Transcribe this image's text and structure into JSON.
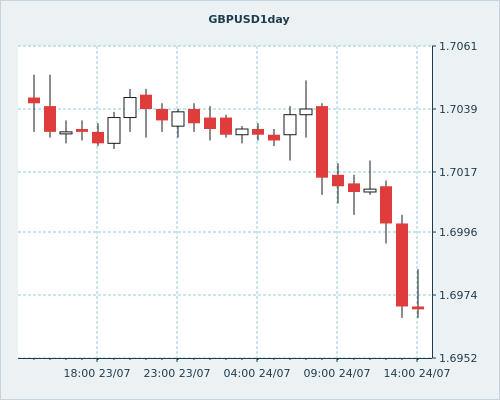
{
  "chart_data": {
    "type": "candlestick",
    "title": "GBPUSD1day",
    "colors": {
      "up_fill": "#ffffff",
      "down_fill": "#e03c3c",
      "outline": "#1a1a1a",
      "grid": "#8fcfd8",
      "plot_background": "#ffffff",
      "frame_background": "#ecf1f4",
      "text": "#1f3c4f"
    },
    "y_axis": {
      "position": "right",
      "range": [
        1.6952,
        1.7061
      ],
      "ticks": [
        "1.7061",
        "1.7039",
        "1.7017",
        "1.6996",
        "1.6974",
        "1.6952"
      ]
    },
    "x_axis": {
      "ticks": [
        "18:00 23/07",
        "23:00 23/07",
        "04:00 24/07",
        "09:00 24/07",
        "14:00 24/07"
      ]
    },
    "grid": true,
    "candles": [
      {
        "open": 1.7043,
        "high": 1.7051,
        "low": 1.7031,
        "close": 1.7041
      },
      {
        "open": 1.704,
        "high": 1.7051,
        "low": 1.7029,
        "close": 1.7031
      },
      {
        "open": 1.7031,
        "high": 1.7035,
        "low": 1.7027,
        "close": 1.7031
      },
      {
        "open": 1.7032,
        "high": 1.7035,
        "low": 1.7028,
        "close": 1.7031
      },
      {
        "open": 1.7031,
        "high": 1.7034,
        "low": 1.7026,
        "close": 1.7027
      },
      {
        "open": 1.7027,
        "high": 1.7038,
        "low": 1.7025,
        "close": 1.7036
      },
      {
        "open": 1.7036,
        "high": 1.7046,
        "low": 1.7031,
        "close": 1.7043
      },
      {
        "open": 1.7044,
        "high": 1.7046,
        "low": 1.7029,
        "close": 1.7039
      },
      {
        "open": 1.7039,
        "high": 1.7041,
        "low": 1.7031,
        "close": 1.7035
      },
      {
        "open": 1.7033,
        "high": 1.7039,
        "low": 1.7029,
        "close": 1.7038
      },
      {
        "open": 1.7039,
        "high": 1.7041,
        "low": 1.7031,
        "close": 1.7034
      },
      {
        "open": 1.7036,
        "high": 1.704,
        "low": 1.7028,
        "close": 1.7032
      },
      {
        "open": 1.7036,
        "high": 1.7037,
        "low": 1.7029,
        "close": 1.703
      },
      {
        "open": 1.703,
        "high": 1.7033,
        "low": 1.7027,
        "close": 1.7032
      },
      {
        "open": 1.7032,
        "high": 1.7034,
        "low": 1.7028,
        "close": 1.703
      },
      {
        "open": 1.703,
        "high": 1.7032,
        "low": 1.7026,
        "close": 1.7028
      },
      {
        "open": 1.703,
        "high": 1.704,
        "low": 1.7021,
        "close": 1.7037
      },
      {
        "open": 1.7037,
        "high": 1.7049,
        "low": 1.7029,
        "close": 1.7039
      },
      {
        "open": 1.704,
        "high": 1.7041,
        "low": 1.7009,
        "close": 1.7015
      },
      {
        "open": 1.7016,
        "high": 1.702,
        "low": 1.7006,
        "close": 1.7012
      },
      {
        "open": 1.7013,
        "high": 1.7016,
        "low": 1.7002,
        "close": 1.701
      },
      {
        "open": 1.701,
        "high": 1.7021,
        "low": 1.7009,
        "close": 1.7011
      },
      {
        "open": 1.7012,
        "high": 1.7014,
        "low": 1.6992,
        "close": 1.6999
      },
      {
        "open": 1.6999,
        "high": 1.7002,
        "low": 1.6966,
        "close": 1.697
      },
      {
        "open": 1.697,
        "high": 1.6983,
        "low": 1.6966,
        "close": 1.6969
      }
    ]
  }
}
